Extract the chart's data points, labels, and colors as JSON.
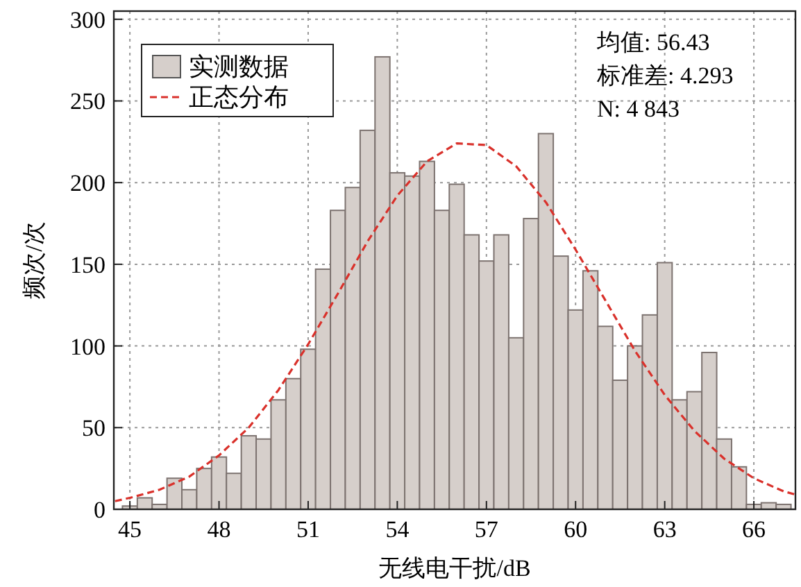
{
  "chart_data": {
    "type": "histogram",
    "xlabel": "无线电干扰/dB",
    "ylabel": "频次/次",
    "xlim": [
      44.46,
      67.4
    ],
    "xticks": [
      45,
      48,
      51,
      54,
      57,
      60,
      63,
      66
    ],
    "ylim": [
      0,
      305
    ],
    "yticks": [
      0,
      50,
      100,
      150,
      200,
      250,
      300
    ],
    "grid": true,
    "legend": "top left",
    "annotations": [
      "均值: 56.43",
      "标准差: 4.293",
      "N: 4 843"
    ],
    "series": [
      {
        "name": "实测数据",
        "color": "#d6cfcb",
        "bins": [
          44.75,
          45.25,
          45.75,
          46.25,
          46.75,
          47.25,
          47.75,
          48.25,
          48.75,
          49.25,
          49.75,
          50.25,
          50.75,
          51.25,
          51.75,
          52.25,
          52.75,
          53.25,
          53.75,
          54.25,
          54.75,
          55.25,
          55.75,
          56.25,
          56.75,
          57.25,
          57.75,
          58.25,
          58.75,
          59.25,
          59.75,
          60.25,
          60.75,
          61.25,
          61.75,
          62.25,
          62.75,
          63.25,
          63.75,
          64.25,
          64.75,
          65.25,
          65.75,
          66.25,
          66.75,
          67.25
        ],
        "values": [
          2,
          7,
          3,
          19,
          12,
          25,
          32,
          22,
          45,
          43,
          67,
          80,
          98,
          147,
          183,
          197,
          232,
          277,
          206,
          204,
          213,
          183,
          199,
          168,
          152,
          168,
          105,
          178,
          230,
          155,
          122,
          146,
          112,
          79,
          100,
          119,
          151,
          67,
          72,
          96,
          43,
          26,
          3,
          4,
          3
        ]
      },
      {
        "type": "line",
        "name": "正态分布",
        "color": "#d9312b",
        "line_style": "dashed",
        "marker": "none",
        "x": [
          44.5,
          45,
          46,
          47,
          48,
          49,
          50,
          51,
          52,
          53,
          54,
          55,
          56,
          57,
          58,
          59,
          60,
          61,
          62,
          63,
          64,
          65,
          66,
          67,
          67.4
        ],
        "values": [
          5,
          7,
          12,
          20,
          33,
          50,
          73,
          101,
          132,
          164,
          192,
          213,
          224,
          223,
          210,
          188,
          159,
          128,
          97,
          70,
          48,
          31,
          19,
          11,
          9
        ]
      }
    ]
  }
}
